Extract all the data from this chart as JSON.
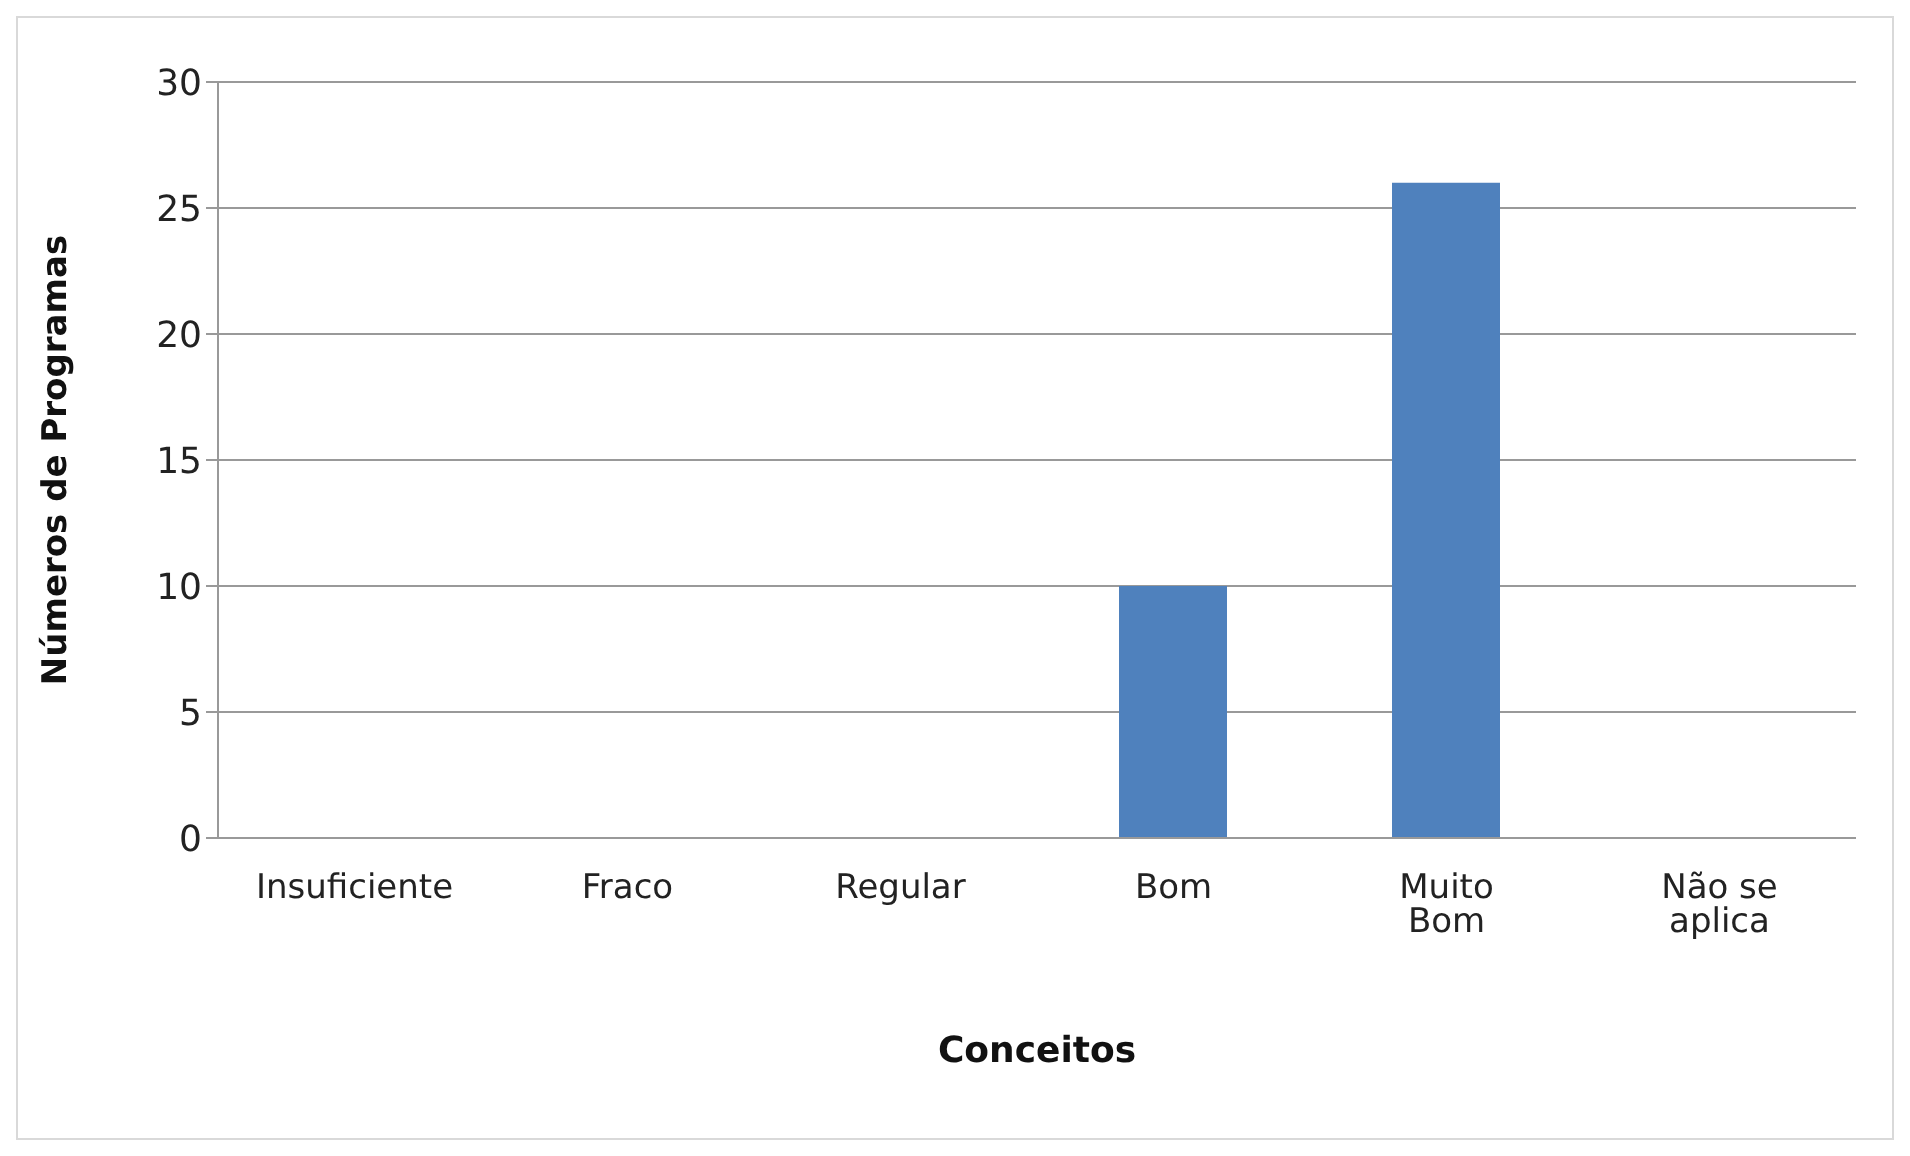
{
  "chart_data": {
    "type": "bar",
    "xlabel": "Conceitos",
    "ylabel": "Números de Programas",
    "categories": [
      "Insuficiente",
      "Fraco",
      "Regular",
      "Bom",
      "Muito Bom",
      "Não se aplica"
    ],
    "values": [
      0,
      0,
      0,
      10,
      26,
      0
    ],
    "color": "#4f81bd",
    "ylim": [
      0,
      30
    ],
    "yticks": [
      0,
      5,
      10,
      15,
      20,
      25,
      30
    ],
    "grid": "y",
    "legend": false
  }
}
